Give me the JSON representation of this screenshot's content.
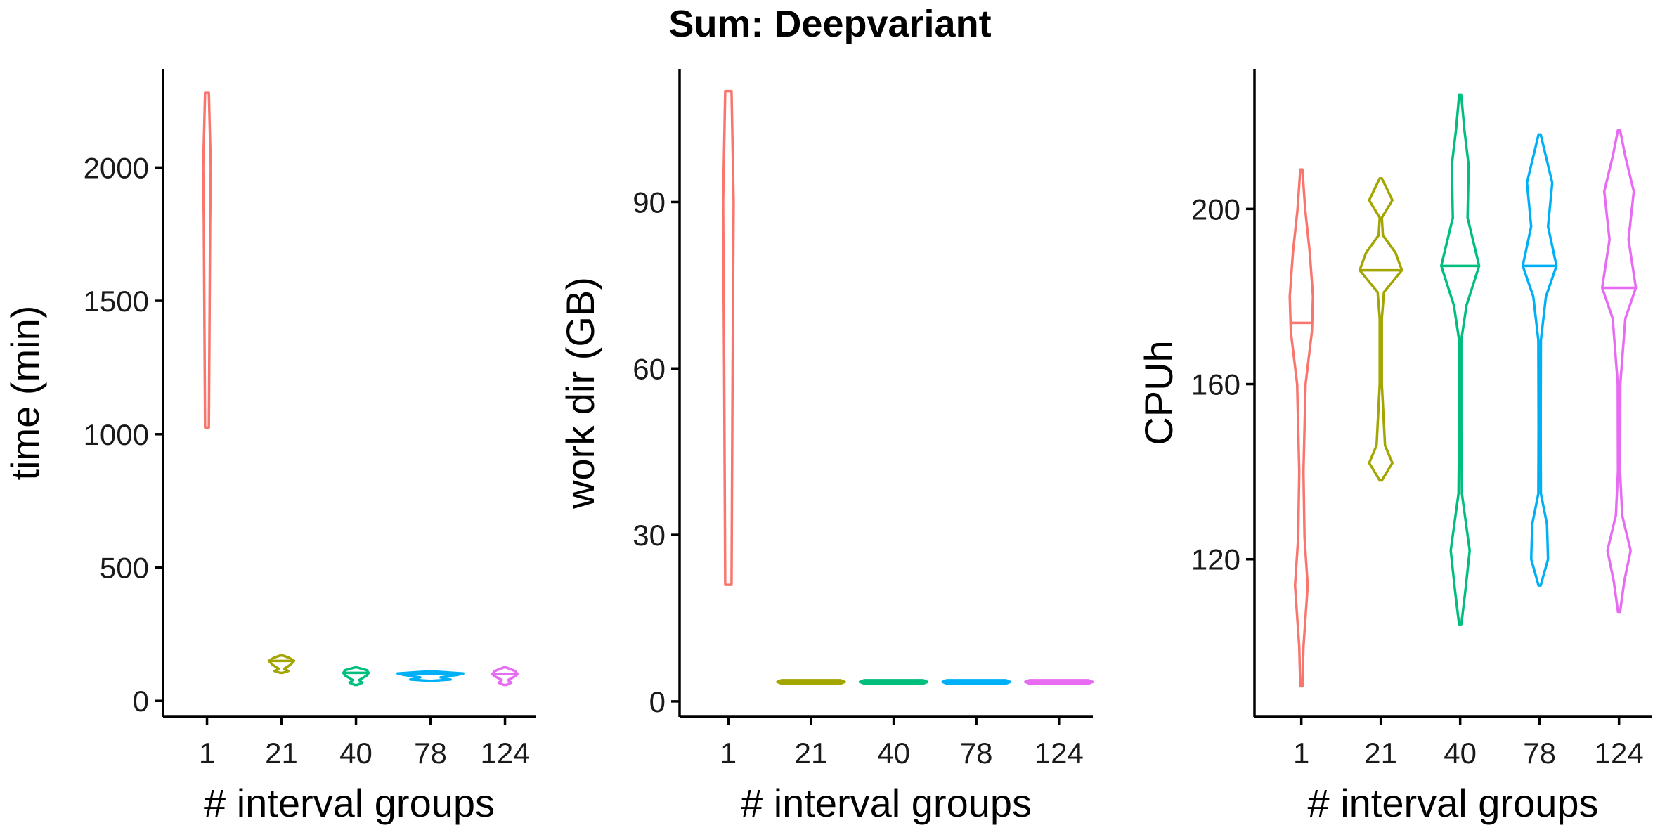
{
  "chart_data": {
    "title": "Sum: Deepvariant",
    "type": "violin",
    "panels": [
      {
        "id": "time",
        "xlabel": "# interval groups",
        "ylabel": "time (min)",
        "categories": [
          "1",
          "21",
          "40",
          "78",
          "124"
        ],
        "ylim": [
          -60,
          2370
        ],
        "yticks": [
          0,
          500,
          1000,
          1500,
          2000
        ],
        "ytick_labels": [
          "0",
          "500",
          "1000",
          "1500",
          "2000"
        ],
        "series": [
          {
            "category": "1",
            "color": "#F8766D",
            "min": 1025,
            "max": 2280,
            "median": null,
            "profile": [
              [
                1025,
                0.15
              ],
              [
                1400,
                0.2
              ],
              [
                1800,
                0.25
              ],
              [
                2000,
                0.3
              ],
              [
                2280,
                0.15
              ]
            ]
          },
          {
            "category": "21",
            "color": "#A3A500",
            "min": 105,
            "max": 170,
            "median": 150,
            "profile": [
              [
                105,
                0.1
              ],
              [
                112,
                0.55
              ],
              [
                120,
                0.2
              ],
              [
                135,
                0.7
              ],
              [
                150,
                1.0
              ],
              [
                162,
                0.6
              ],
              [
                170,
                0.1
              ]
            ]
          },
          {
            "category": "40",
            "color": "#00BF7D",
            "min": 60,
            "max": 125,
            "median": 105,
            "profile": [
              [
                60,
                0.1
              ],
              [
                68,
                0.5
              ],
              [
                78,
                0.25
              ],
              [
                95,
                0.85
              ],
              [
                105,
                1.0
              ],
              [
                115,
                0.85
              ],
              [
                125,
                0.1
              ]
            ]
          },
          {
            "category": "78",
            "color": "#00B0F6",
            "min": 75,
            "max": 110,
            "median": 100,
            "profile": [
              [
                75,
                0.1
              ],
              [
                80,
                1.6
              ],
              [
                88,
                0.8
              ],
              [
                97,
                2.1
              ],
              [
                103,
                2.6
              ],
              [
                110,
                0.3
              ]
            ]
          },
          {
            "category": "124",
            "color": "#E76BF3",
            "min": 60,
            "max": 125,
            "median": 100,
            "profile": [
              [
                60,
                0.1
              ],
              [
                68,
                0.5
              ],
              [
                78,
                0.25
              ],
              [
                92,
                0.8
              ],
              [
                100,
                1.0
              ],
              [
                112,
                0.8
              ],
              [
                125,
                0.1
              ]
            ]
          }
        ]
      },
      {
        "id": "workdir",
        "xlabel": "# interval groups",
        "ylabel": "work dir (GB)",
        "categories": [
          "1",
          "21",
          "40",
          "78",
          "124"
        ],
        "ylim": [
          -2.8,
          114
        ],
        "yticks": [
          0,
          30,
          60,
          90
        ],
        "ytick_labels": [
          "0",
          "30",
          "60",
          "90"
        ],
        "series": [
          {
            "category": "1",
            "color": "#F8766D",
            "min": 21,
            "max": 110,
            "median": null,
            "profile": [
              [
                21,
                0.15
              ],
              [
                60,
                0.2
              ],
              [
                90,
                0.25
              ],
              [
                110,
                0.15
              ]
            ]
          },
          {
            "category": "21",
            "color": "#A3A500",
            "min": 3.2,
            "max": 3.8,
            "median": 3.5,
            "profile": [
              [
                3.2,
                1.4
              ],
              [
                3.5,
                1.6
              ],
              [
                3.8,
                1.4
              ]
            ]
          },
          {
            "category": "40",
            "color": "#00BF7D",
            "min": 3.2,
            "max": 3.8,
            "median": 3.5,
            "profile": [
              [
                3.2,
                1.4
              ],
              [
                3.5,
                1.6
              ],
              [
                3.8,
                1.4
              ]
            ]
          },
          {
            "category": "78",
            "color": "#00B0F6",
            "min": 3.2,
            "max": 3.8,
            "median": 3.5,
            "profile": [
              [
                3.2,
                1.4
              ],
              [
                3.5,
                1.6
              ],
              [
                3.8,
                1.4
              ]
            ]
          },
          {
            "category": "124",
            "color": "#E76BF3",
            "min": 3.2,
            "max": 3.8,
            "median": 3.5,
            "profile": [
              [
                3.2,
                1.4
              ],
              [
                3.5,
                1.6
              ],
              [
                3.8,
                1.4
              ]
            ]
          }
        ]
      },
      {
        "id": "cpuh",
        "xlabel": "# interval groups",
        "ylabel": "CPUh",
        "categories": [
          "1",
          "21",
          "40",
          "78",
          "124"
        ],
        "ylim": [
          84,
          232
        ],
        "yticks": [
          120,
          160,
          200
        ],
        "ytick_labels": [
          "120",
          "160",
          "200"
        ],
        "series": [
          {
            "category": "1",
            "color": "#F8766D",
            "min": 91,
            "max": 209,
            "median": 174,
            "profile": [
              [
                91,
                0.02
              ],
              [
                100,
                0.1
              ],
              [
                114,
                0.3
              ],
              [
                125,
                0.15
              ],
              [
                140,
                0.1
              ],
              [
                160,
                0.2
              ],
              [
                172,
                0.5
              ],
              [
                180,
                0.55
              ],
              [
                190,
                0.4
              ],
              [
                200,
                0.18
              ],
              [
                209,
                0.02
              ]
            ]
          },
          {
            "category": "21",
            "color": "#A3A500",
            "min": 138,
            "max": 207,
            "median": 186,
            "profile": [
              [
                138,
                0.02
              ],
              [
                142,
                0.55
              ],
              [
                146,
                0.2
              ],
              [
                160,
                0.05
              ],
              [
                175,
                0.05
              ],
              [
                181,
                0.15
              ],
              [
                186,
                1.0
              ],
              [
                190,
                0.7
              ],
              [
                194,
                0.1
              ],
              [
                198,
                0.05
              ],
              [
                202,
                0.55
              ],
              [
                207,
                0.02
              ]
            ]
          },
          {
            "category": "40",
            "color": "#00BF7D",
            "min": 105,
            "max": 226,
            "median": 187,
            "profile": [
              [
                105,
                0.02
              ],
              [
                113,
                0.25
              ],
              [
                122,
                0.45
              ],
              [
                135,
                0.08
              ],
              [
                150,
                0.05
              ],
              [
                170,
                0.05
              ],
              [
                178,
                0.3
              ],
              [
                187,
                0.9
              ],
              [
                198,
                0.35
              ],
              [
                210,
                0.4
              ],
              [
                218,
                0.2
              ],
              [
                226,
                0.02
              ]
            ]
          },
          {
            "category": "78",
            "color": "#00B0F6",
            "min": 114,
            "max": 217,
            "median": 187,
            "profile": [
              [
                114,
                0.02
              ],
              [
                120,
                0.4
              ],
              [
                128,
                0.35
              ],
              [
                135,
                0.06
              ],
              [
                150,
                0.05
              ],
              [
                170,
                0.06
              ],
              [
                180,
                0.3
              ],
              [
                187,
                0.8
              ],
              [
                196,
                0.4
              ],
              [
                206,
                0.6
              ],
              [
                212,
                0.3
              ],
              [
                217,
                0.02
              ]
            ]
          },
          {
            "category": "124",
            "color": "#E76BF3",
            "min": 108,
            "max": 218,
            "median": 182,
            "profile": [
              [
                108,
                0.02
              ],
              [
                115,
                0.25
              ],
              [
                122,
                0.55
              ],
              [
                130,
                0.15
              ],
              [
                140,
                0.05
              ],
              [
                160,
                0.06
              ],
              [
                175,
                0.3
              ],
              [
                182,
                0.8
              ],
              [
                193,
                0.45
              ],
              [
                204,
                0.7
              ],
              [
                212,
                0.3
              ],
              [
                218,
                0.02
              ]
            ]
          }
        ]
      }
    ]
  }
}
